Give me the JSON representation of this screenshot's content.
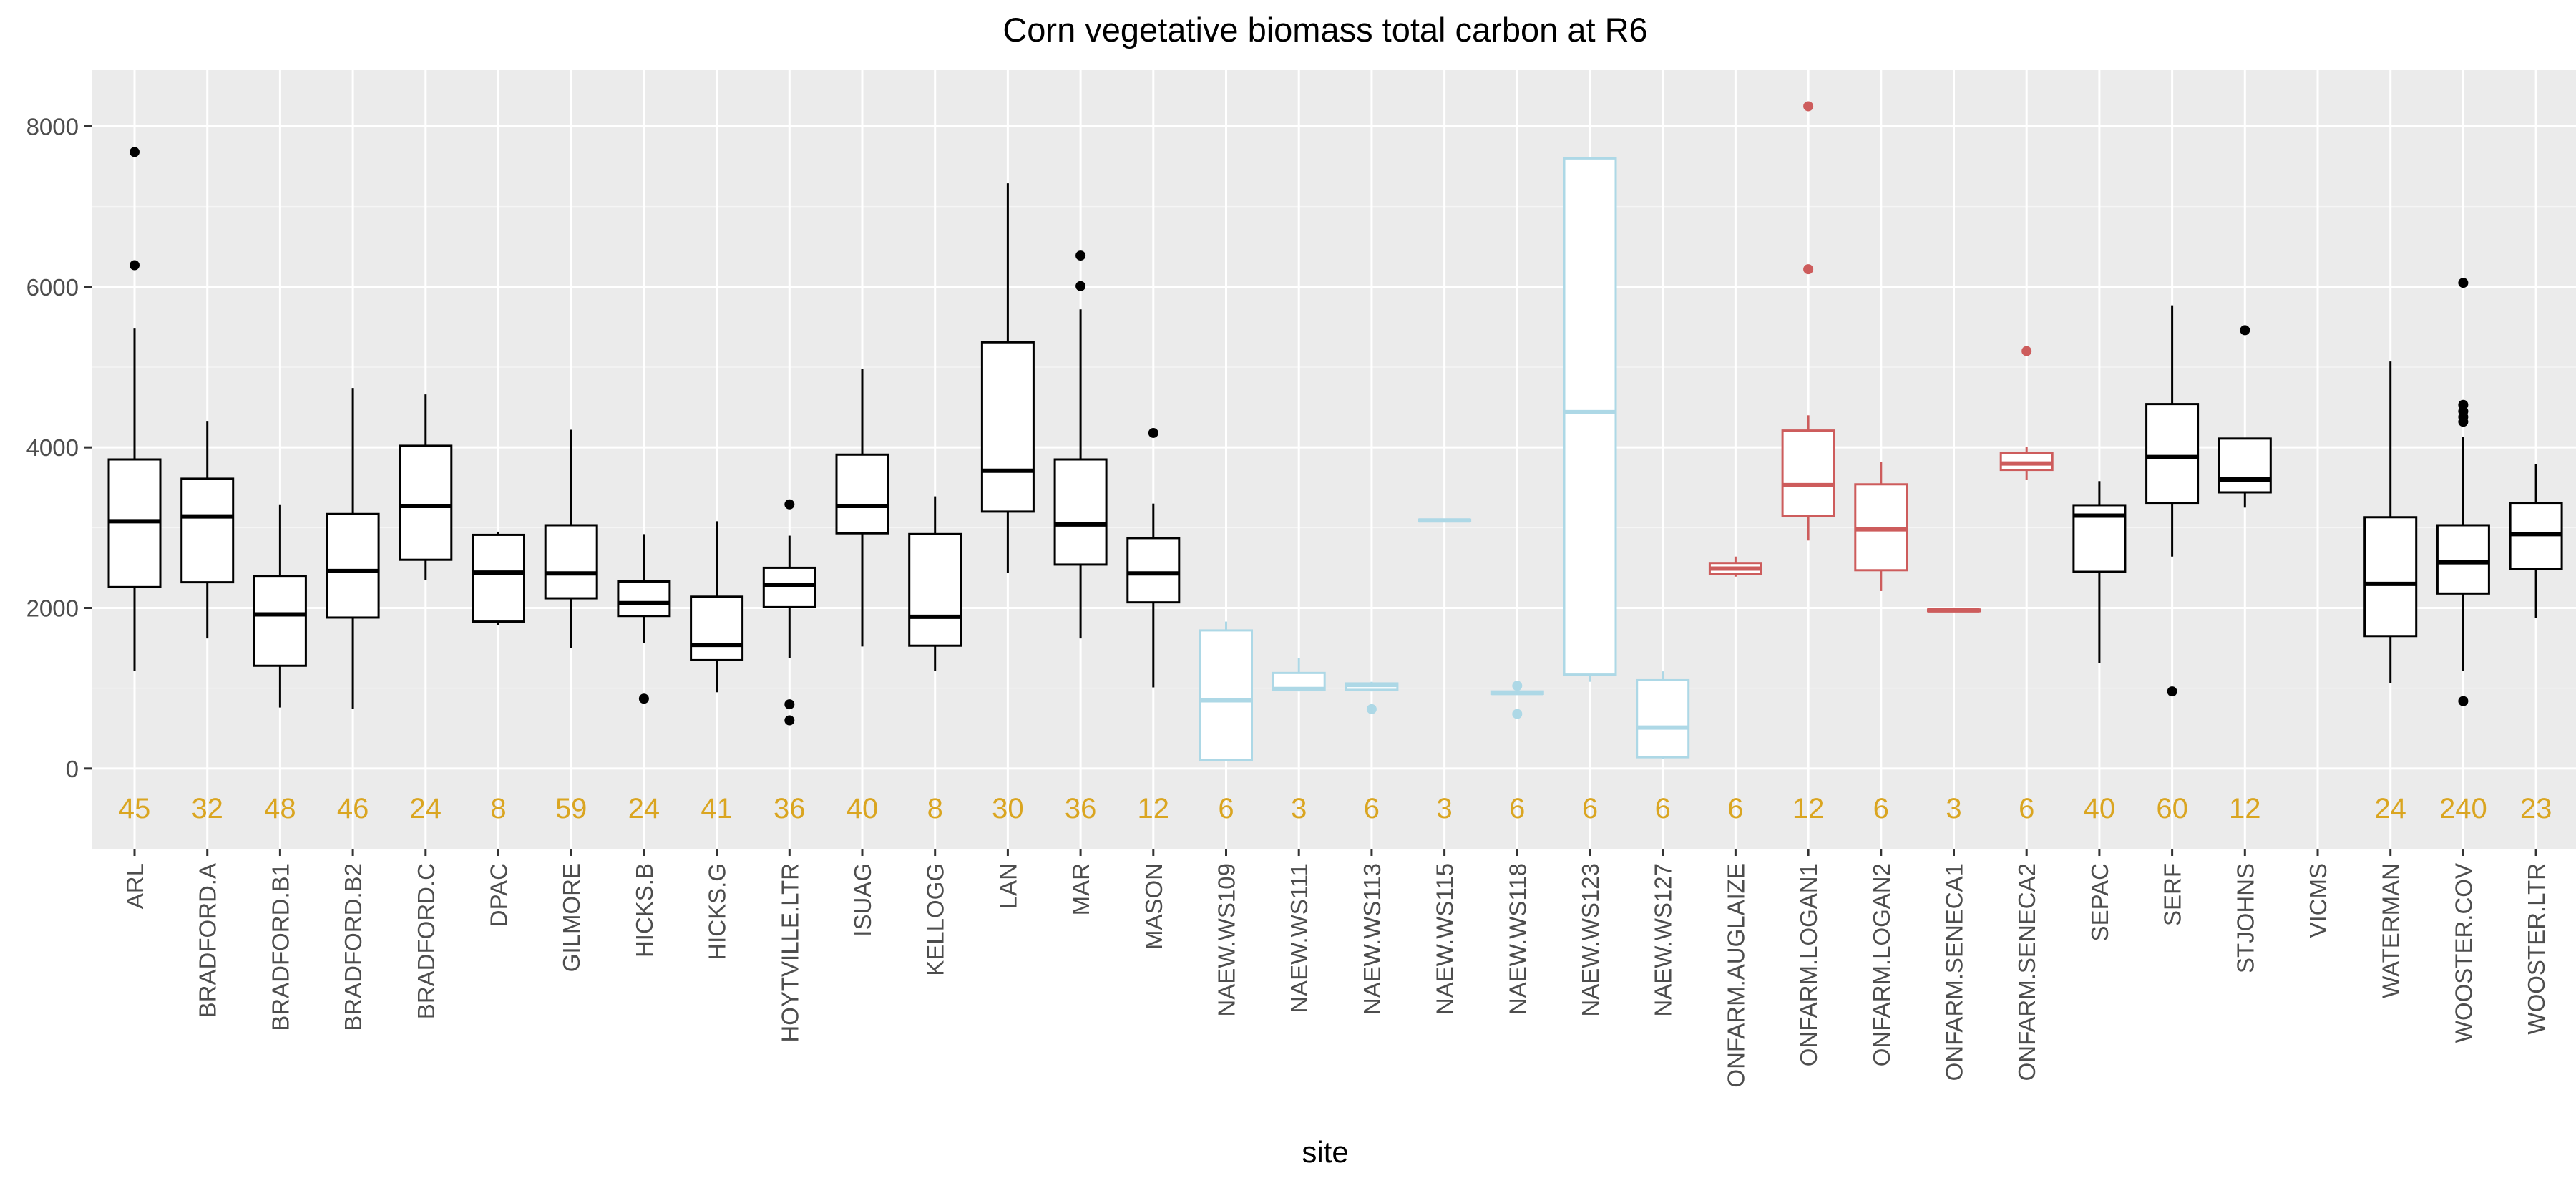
{
  "chart_data": {
    "type": "box",
    "title": "Corn vegetative biomass total carbon at R6",
    "xlabel": "site",
    "ylabel": "",
    "ylim": [
      -1000,
      8700
    ],
    "yticks": [
      0,
      2000,
      4000,
      6000,
      8000
    ],
    "grid": true,
    "legend": "none",
    "colors": {
      "panel_bg": "#EBEBEB",
      "grid_major": "#FFFFFF",
      "grid_minor": "#F5F5F5",
      "black_group": "#000000",
      "blue_group": "#ADD8E6",
      "red_group": "#CD5C5C",
      "count_label": "#DAA520",
      "text": "#4D4D4D",
      "title": "#000000"
    },
    "sites": [
      {
        "name": "ARL",
        "n": "45",
        "color": "black",
        "box": [
          1220,
          2260,
          3080,
          3850,
          5480
        ],
        "outliers": [
          6270,
          7680
        ]
      },
      {
        "name": "BRADFORD.A",
        "n": "32",
        "color": "black",
        "box": [
          1620,
          2320,
          3140,
          3610,
          4330
        ],
        "outliers": []
      },
      {
        "name": "BRADFORD.B1",
        "n": "48",
        "color": "black",
        "box": [
          760,
          1280,
          1920,
          2400,
          3290
        ],
        "outliers": []
      },
      {
        "name": "BRADFORD.B2",
        "n": "46",
        "color": "black",
        "box": [
          740,
          1880,
          2460,
          3170,
          4740
        ],
        "outliers": []
      },
      {
        "name": "BRADFORD.C",
        "n": "24",
        "color": "black",
        "box": [
          2350,
          2600,
          3270,
          4020,
          4660
        ],
        "outliers": []
      },
      {
        "name": "DPAC",
        "n": "8",
        "color": "black",
        "box": [
          1790,
          1830,
          2440,
          2910,
          2950
        ],
        "outliers": []
      },
      {
        "name": "GILMORE",
        "n": "59",
        "color": "black",
        "box": [
          1500,
          2120,
          2430,
          3030,
          4220
        ],
        "outliers": []
      },
      {
        "name": "HICKS.B",
        "n": "24",
        "color": "black",
        "box": [
          1560,
          1900,
          2060,
          2330,
          2920
        ],
        "outliers": [
          870
        ]
      },
      {
        "name": "HICKS.G",
        "n": "41",
        "color": "black",
        "box": [
          950,
          1350,
          1540,
          2140,
          3080
        ],
        "outliers": []
      },
      {
        "name": "HOYTVILLE.LTR",
        "n": "36",
        "color": "black",
        "box": [
          1380,
          2010,
          2290,
          2500,
          2900
        ],
        "outliers": [
          3290,
          800,
          600
        ]
      },
      {
        "name": "ISUAG",
        "n": "40",
        "color": "black",
        "box": [
          1520,
          2930,
          3270,
          3910,
          4980
        ],
        "outliers": []
      },
      {
        "name": "KELLOGG",
        "n": "8",
        "color": "black",
        "box": [
          1220,
          1530,
          1890,
          2920,
          3390
        ],
        "outliers": []
      },
      {
        "name": "LAN",
        "n": "30",
        "color": "black",
        "box": [
          2440,
          3200,
          3710,
          5310,
          7290
        ],
        "outliers": []
      },
      {
        "name": "MAR",
        "n": "36",
        "color": "black",
        "box": [
          1620,
          2540,
          3040,
          3850,
          5720
        ],
        "outliers": [
          6010,
          6390
        ]
      },
      {
        "name": "MASON",
        "n": "12",
        "color": "black",
        "box": [
          1010,
          2070,
          2430,
          2870,
          3300
        ],
        "outliers": [
          4180
        ]
      },
      {
        "name": "NAEW.WS109",
        "n": "6",
        "color": "blue",
        "box": [
          100,
          110,
          850,
          1720,
          1830
        ],
        "outliers": []
      },
      {
        "name": "NAEW.WS111",
        "n": "3",
        "color": "blue",
        "box": [
          960,
          980,
          990,
          1190,
          1380
        ],
        "outliers": []
      },
      {
        "name": "NAEW.WS113",
        "n": "6",
        "color": "blue",
        "box": [
          960,
          980,
          1040,
          1060,
          1080
        ],
        "outliers": [
          740
        ]
      },
      {
        "name": "NAEW.WS115",
        "n": "3",
        "color": "blue",
        "box": [
          3070,
          3080,
          3090,
          3100,
          3110
        ],
        "outliers": []
      },
      {
        "name": "NAEW.WS118",
        "n": "6",
        "color": "blue",
        "box": [
          920,
          930,
          940,
          960,
          990
        ],
        "outliers": [
          680,
          1030
        ]
      },
      {
        "name": "NAEW.WS123",
        "n": "6",
        "color": "blue",
        "box": [
          1080,
          1170,
          4440,
          7600,
          7600
        ],
        "outliers": []
      },
      {
        "name": "NAEW.WS127",
        "n": "6",
        "color": "blue",
        "box": [
          120,
          140,
          510,
          1100,
          1210
        ],
        "outliers": []
      },
      {
        "name": "ONFARM.AUGLAIZE",
        "n": "6",
        "color": "red",
        "box": [
          2390,
          2420,
          2490,
          2560,
          2640
        ],
        "outliers": []
      },
      {
        "name": "ONFARM.LOGAN1",
        "n": "12",
        "color": "red",
        "box": [
          2840,
          3150,
          3530,
          4210,
          4400
        ],
        "outliers": [
          6220,
          8250
        ]
      },
      {
        "name": "ONFARM.LOGAN2",
        "n": "6",
        "color": "red",
        "box": [
          2210,
          2470,
          2980,
          3540,
          3820
        ],
        "outliers": []
      },
      {
        "name": "ONFARM.SENECA1",
        "n": "3",
        "color": "red",
        "box": [
          1950,
          1960,
          1970,
          1980,
          1990
        ],
        "outliers": []
      },
      {
        "name": "ONFARM.SENECA2",
        "n": "6",
        "color": "red",
        "box": [
          3600,
          3720,
          3800,
          3930,
          4010
        ],
        "outliers": [
          5200
        ]
      },
      {
        "name": "SEPAC",
        "n": "40",
        "color": "black",
        "box": [
          1310,
          2450,
          3150,
          3280,
          3580
        ],
        "outliers": []
      },
      {
        "name": "SERF",
        "n": "60",
        "color": "black",
        "box": [
          2640,
          3310,
          3880,
          4540,
          5770
        ],
        "outliers": [
          960
        ]
      },
      {
        "name": "STJOHNS",
        "n": "12",
        "color": "black",
        "box": [
          3250,
          3440,
          3600,
          4110,
          4110
        ],
        "outliers": [
          5460
        ]
      },
      {
        "name": "VICMS",
        "n": "",
        "color": "black",
        "box": null,
        "outliers": []
      },
      {
        "name": "WATERMAN",
        "n": "24",
        "color": "black",
        "box": [
          1060,
          1650,
          2300,
          3130,
          5070
        ],
        "outliers": []
      },
      {
        "name": "WOOSTER.COV",
        "n": "240",
        "color": "black",
        "box": [
          1220,
          2180,
          2570,
          3030,
          4130
        ],
        "outliers": [
          4320,
          4380,
          4450,
          4530,
          6050,
          840
        ]
      },
      {
        "name": "WOOSTER.LTR",
        "n": "23",
        "color": "black",
        "box": [
          1880,
          2490,
          2920,
          3310,
          3790
        ],
        "outliers": []
      }
    ]
  }
}
